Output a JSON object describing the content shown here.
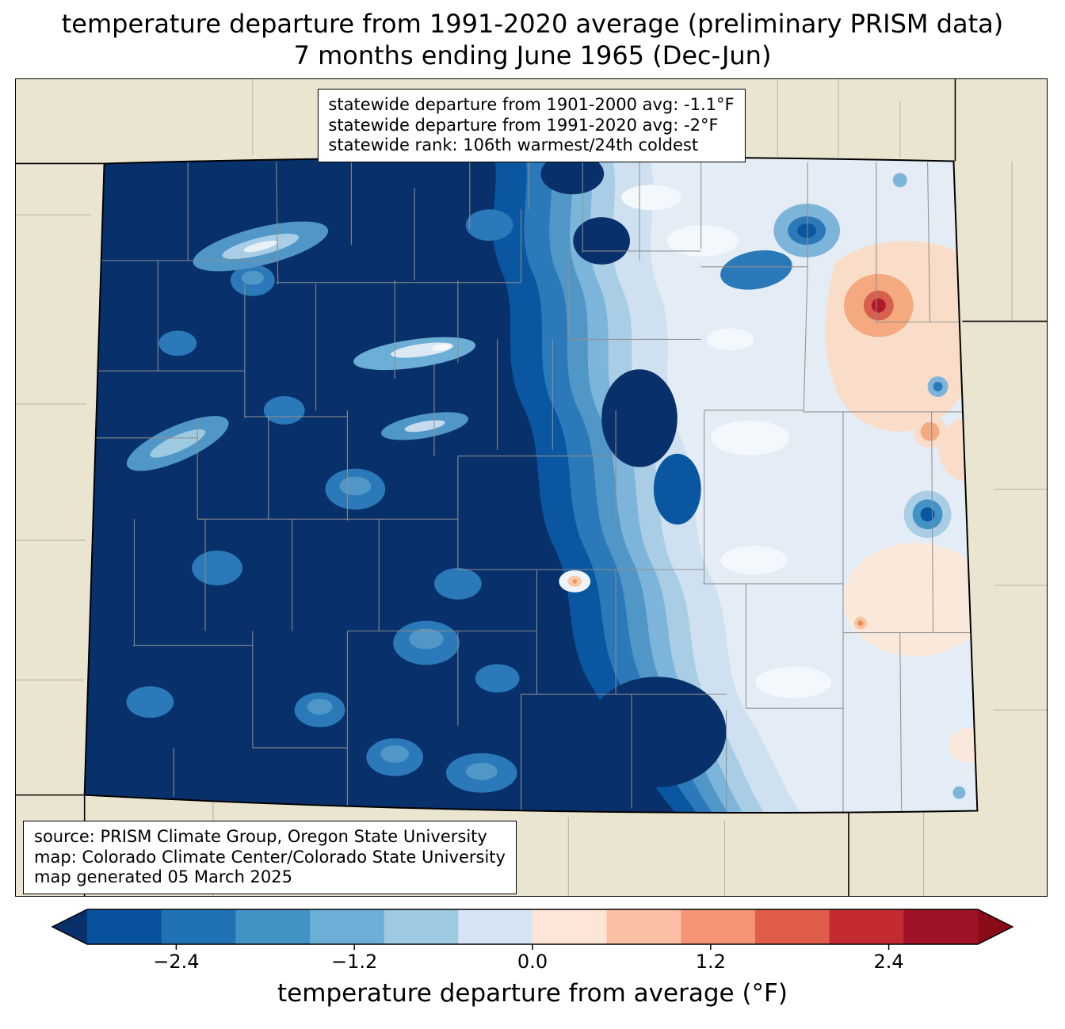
{
  "title": {
    "line1": "temperature departure from 1991-2020 average (preliminary PRISM data)",
    "line2": "7 months ending June 1965 (Dec-Jun)"
  },
  "stats_box": {
    "line1": "statewide departure from 1901-2000 avg: -1.1°F",
    "line2": "statewide departure from 1991-2020 avg: -2°F",
    "line3": "statewide rank: 106th warmest/24th coldest"
  },
  "source_box": {
    "line1": "source: PRISM Climate Group, Oregon State University",
    "line2": "map: Colorado Climate Center/Colorado State University",
    "line3": "map generated 05 March 2025"
  },
  "colorbar": {
    "label": "temperature departure from average (°F)",
    "ticks": [
      "−2.4",
      "−1.2",
      "0.0",
      "1.2",
      "2.4"
    ],
    "tick_values": [
      -2.4,
      -1.2,
      0.0,
      1.2,
      2.4
    ],
    "range": [
      -3,
      3
    ],
    "under_color": "#08306b",
    "over_color": "#8a0b18",
    "segment_colors": [
      "#08519c",
      "#2171b5",
      "#4292c6",
      "#6baed6",
      "#9ecae1",
      "#d6e5f4",
      "#fde6d8",
      "#fbc0a4",
      "#f59476",
      "#e05c4b",
      "#c32b31",
      "#9f1228"
    ]
  },
  "map": {
    "region": "Colorado",
    "palette": {
      "background_outside": "#e9e5d1",
      "county_line": "#8f8f8f",
      "state_border": "#000000",
      "coldest_fill": "#08306b",
      "warm_spot_core": "#b2182b"
    }
  }
}
